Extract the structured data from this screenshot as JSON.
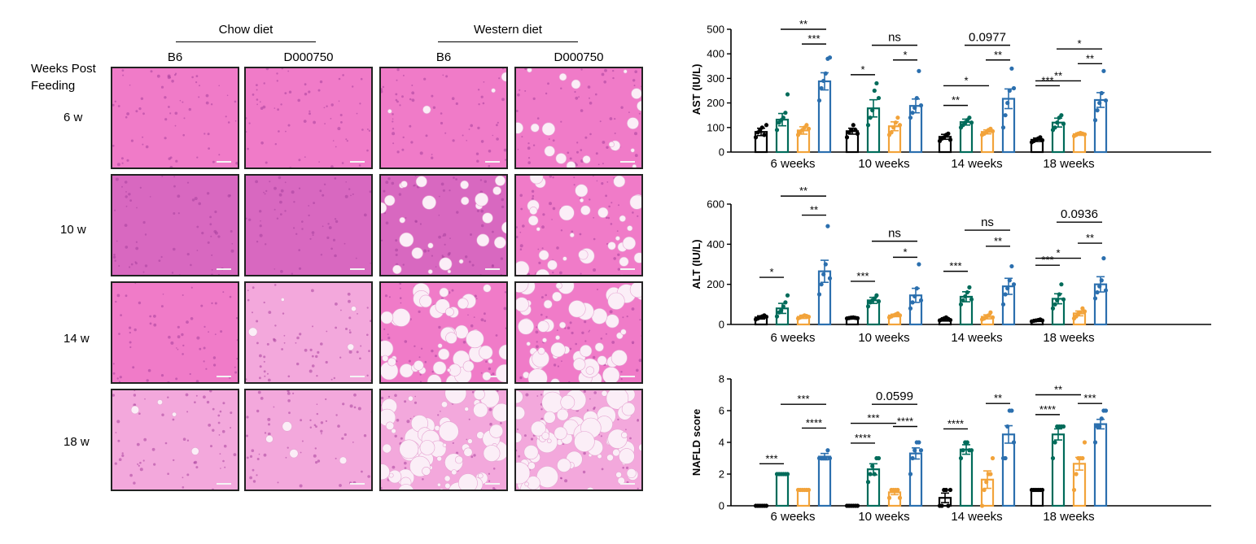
{
  "histology": {
    "diet_headers": [
      "Chow diet",
      "Western diet"
    ],
    "group_headers": [
      "B6",
      "D000750",
      "B6",
      "D000750"
    ],
    "row_header": "Weeks Post Feeding",
    "row_header_lines": [
      "Weeks Post",
      "Feeding"
    ],
    "timepoints": [
      "6 w",
      "10 w",
      "14 w",
      "18 w"
    ],
    "tile_colors": {
      "light": "#f07bc8",
      "deep": "#d868c0",
      "pale": "#f3a8dc"
    },
    "steatosis_level": [
      [
        0,
        0,
        0.05,
        0.25
      ],
      [
        0,
        0,
        0.35,
        0.45
      ],
      [
        0,
        0.05,
        0.65,
        0.75
      ],
      [
        0.05,
        0.05,
        0.9,
        0.95
      ]
    ]
  },
  "colors": {
    "black": "#000000",
    "green": "#006b5a",
    "orange": "#f2a33a",
    "blue": "#2b6fae"
  },
  "chart_data": [
    {
      "type": "bar",
      "ylabel": "AST (IU/L)",
      "ylim": [
        0,
        500
      ],
      "yticks": [
        "0",
        "100",
        "200",
        "300",
        "400",
        "500"
      ],
      "categories": [
        "6 weeks",
        "10 weeks",
        "14 weeks",
        "18 weeks"
      ],
      "series_colors": [
        "#000000",
        "#006b5a",
        "#f2a33a",
        "#2b6fae"
      ],
      "means": [
        [
          82,
          132,
          88,
          288
        ],
        [
          85,
          178,
          105,
          188
        ],
        [
          62,
          122,
          82,
          217
        ],
        [
          50,
          120,
          73,
          212
        ]
      ],
      "sems": [
        [
          15,
          25,
          15,
          35
        ],
        [
          12,
          35,
          18,
          28
        ],
        [
          10,
          12,
          8,
          40
        ],
        [
          7,
          18,
          5,
          30
        ]
      ],
      "points": [
        [
          [
            60,
            80,
            90,
            100,
            70,
            110
          ],
          [
            90,
            120,
            130,
            140,
            160,
            235
          ],
          [
            70,
            80,
            90,
            100,
            110,
            95
          ],
          [
            210,
            260,
            290,
            320,
            380,
            385
          ]
        ],
        [
          [
            60,
            80,
            90,
            110,
            90,
            75
          ],
          [
            110,
            140,
            170,
            250,
            280,
            220
          ],
          [
            70,
            80,
            100,
            120,
            140,
            110
          ],
          [
            140,
            160,
            180,
            220,
            330,
            190
          ]
        ],
        [
          [
            45,
            55,
            60,
            70,
            75,
            50
          ],
          [
            100,
            110,
            120,
            130,
            140,
            120
          ],
          [
            70,
            75,
            80,
            90,
            95,
            85
          ],
          [
            100,
            150,
            200,
            250,
            340,
            260
          ]
        ],
        [
          [
            40,
            45,
            50,
            55,
            60,
            48
          ],
          [
            90,
            100,
            120,
            140,
            150,
            115
          ],
          [
            65,
            70,
            75,
            78,
            75,
            72
          ],
          [
            130,
            170,
            200,
            240,
            330,
            210
          ]
        ]
      ],
      "annotations": [
        {
          "g": 0,
          "from": 1,
          "to": 3,
          "y": 500,
          "text": "**"
        },
        {
          "g": 0,
          "from": 2,
          "to": 3,
          "y": 440,
          "text": "***"
        },
        {
          "g": 1,
          "from": 0,
          "to": 1,
          "y": 315,
          "text": "*"
        },
        {
          "g": 1,
          "from": 1,
          "to": 3,
          "y": 435,
          "text": "ns"
        },
        {
          "g": 1,
          "from": 2,
          "to": 3,
          "y": 375,
          "text": "*"
        },
        {
          "g": 2,
          "from": 0,
          "to": 2,
          "y": 270,
          "text": "*"
        },
        {
          "g": 2,
          "from": 0,
          "to": 1,
          "y": 190,
          "text": "**"
        },
        {
          "g": 2,
          "from": 1,
          "to": 3,
          "y": 435,
          "text": "0.0977"
        },
        {
          "g": 2,
          "from": 2,
          "to": 3,
          "y": 375,
          "text": "**"
        },
        {
          "g": 3,
          "from": 0,
          "to": 1,
          "y": 270,
          "text": "***"
        },
        {
          "g": 3,
          "from": 0,
          "to": 2,
          "y": 290,
          "text": "**"
        },
        {
          "g": 3,
          "from": 1,
          "to": 3,
          "y": 420,
          "text": "*"
        },
        {
          "g": 3,
          "from": 2,
          "to": 3,
          "y": 360,
          "text": "**"
        }
      ]
    },
    {
      "type": "bar",
      "ylabel": "ALT (IU/L)",
      "ylim": [
        0,
        600
      ],
      "yticks": [
        "0",
        "200",
        "400",
        "600"
      ],
      "categories": [
        "6 weeks",
        "10 weeks",
        "14 weeks",
        "18 weeks"
      ],
      "series_colors": [
        "#000000",
        "#006b5a",
        "#f2a33a",
        "#2b6fae"
      ],
      "means": [
        [
          35,
          80,
          38,
          265
        ],
        [
          32,
          120,
          45,
          145
        ],
        [
          25,
          138,
          38,
          190
        ],
        [
          20,
          128,
          55,
          200
        ]
      ],
      "sems": [
        [
          8,
          25,
          8,
          55
        ],
        [
          5,
          15,
          6,
          35
        ],
        [
          8,
          25,
          10,
          40
        ],
        [
          5,
          25,
          12,
          38
        ]
      ],
      "points": [
        [
          [
            25,
            30,
            35,
            40,
            45,
            38
          ],
          [
            40,
            60,
            70,
            90,
            110,
            145
          ],
          [
            30,
            35,
            40,
            45,
            42,
            38
          ],
          [
            150,
            200,
            250,
            300,
            490,
            230
          ]
        ],
        [
          [
            30,
            32,
            34,
            35,
            33,
            31
          ],
          [
            90,
            110,
            120,
            130,
            145,
            115
          ],
          [
            35,
            40,
            45,
            50,
            55,
            45
          ],
          [
            80,
            110,
            140,
            180,
            300,
            120
          ]
        ],
        [
          [
            20,
            25,
            30,
            35,
            28,
            22
          ],
          [
            100,
            120,
            140,
            160,
            185,
            125
          ],
          [
            25,
            30,
            40,
            45,
            60,
            35
          ],
          [
            100,
            150,
            180,
            220,
            290,
            200
          ]
        ],
        [
          [
            15,
            18,
            20,
            22,
            25,
            20
          ],
          [
            80,
            100,
            120,
            150,
            200,
            125
          ],
          [
            30,
            40,
            55,
            60,
            80,
            65
          ],
          [
            130,
            160,
            190,
            220,
            330,
            170
          ]
        ]
      ],
      "annotations": [
        {
          "g": 0,
          "from": 0,
          "to": 1,
          "y": 235,
          "text": "*"
        },
        {
          "g": 0,
          "from": 1,
          "to": 3,
          "y": 640,
          "text": "**"
        },
        {
          "g": 0,
          "from": 2,
          "to": 3,
          "y": 545,
          "text": "**"
        },
        {
          "g": 1,
          "from": 0,
          "to": 1,
          "y": 215,
          "text": "***"
        },
        {
          "g": 1,
          "from": 1,
          "to": 3,
          "y": 415,
          "text": "ns"
        },
        {
          "g": 1,
          "from": 2,
          "to": 3,
          "y": 335,
          "text": "*"
        },
        {
          "g": 2,
          "from": 0,
          "to": 1,
          "y": 265,
          "text": "***"
        },
        {
          "g": 2,
          "from": 1,
          "to": 3,
          "y": 470,
          "text": "ns"
        },
        {
          "g": 2,
          "from": 2,
          "to": 3,
          "y": 390,
          "text": "**"
        },
        {
          "g": 3,
          "from": 0,
          "to": 1,
          "y": 295,
          "text": "***"
        },
        {
          "g": 3,
          "from": 0,
          "to": 2,
          "y": 330,
          "text": "*"
        },
        {
          "g": 3,
          "from": 1,
          "to": 3,
          "y": 510,
          "text": "0.0936"
        },
        {
          "g": 3,
          "from": 2,
          "to": 3,
          "y": 405,
          "text": "**"
        }
      ]
    },
    {
      "type": "bar",
      "ylabel": "NAFLD score",
      "ylim": [
        0,
        8
      ],
      "yticks": [
        "0",
        "2",
        "4",
        "6",
        "8"
      ],
      "categories": [
        "6 weeks",
        "10 weeks",
        "14 weeks",
        "18 weeks"
      ],
      "series_colors": [
        "#000000",
        "#006b5a",
        "#f2a33a",
        "#2b6fae"
      ],
      "means": [
        [
          0,
          2,
          1,
          3.1
        ],
        [
          0,
          2.3,
          0.85,
          3.3
        ],
        [
          0.5,
          3.55,
          1.65,
          4.5
        ],
        [
          1,
          4.5,
          2.65,
          5.15
        ]
      ],
      "sems": [
        [
          0,
          0,
          0,
          0.2
        ],
        [
          0,
          0.35,
          0.15,
          0.35
        ],
        [
          0.3,
          0.3,
          0.55,
          0.55
        ],
        [
          0,
          0.35,
          0.4,
          0.3
        ]
      ],
      "points": [
        [
          [
            0,
            0,
            0,
            0,
            0,
            0
          ],
          [
            2,
            2,
            2,
            2,
            2,
            2
          ],
          [
            1,
            1,
            1,
            1,
            1,
            1
          ],
          [
            3,
            3,
            3,
            3,
            3.5,
            3
          ]
        ],
        [
          [
            0,
            0,
            0,
            0,
            0,
            0
          ],
          [
            1.5,
            2,
            2.5,
            2,
            3,
            3
          ],
          [
            0.5,
            1,
            1,
            1,
            1,
            0.5
          ],
          [
            2,
            3,
            3.5,
            4,
            4,
            3.5
          ]
        ],
        [
          [
            0,
            0,
            1,
            1,
            0,
            1
          ],
          [
            3,
            3.5,
            4,
            4,
            3.5,
            3.5
          ],
          [
            0,
            1,
            1.5,
            2,
            2,
            3
          ],
          [
            3,
            3,
            5,
            6,
            6,
            4
          ]
        ],
        [
          [
            1,
            1,
            1,
            1,
            1,
            1
          ],
          [
            3,
            4,
            5,
            5,
            5,
            5
          ],
          [
            1,
            2,
            3,
            3,
            3,
            4
          ],
          [
            4,
            5,
            5,
            5.5,
            6,
            6
          ]
        ]
      ],
      "annotations": [
        {
          "g": 0,
          "from": 0,
          "to": 1,
          "y": 2.65,
          "text": "***"
        },
        {
          "g": 0,
          "from": 1,
          "to": 3,
          "y": 6.4,
          "text": "***"
        },
        {
          "g": 0,
          "from": 2,
          "to": 3,
          "y": 4.9,
          "text": "****"
        },
        {
          "g": 1,
          "from": 0,
          "to": 1,
          "y": 3.95,
          "text": "****"
        },
        {
          "g": 1,
          "from": 0,
          "to": 2,
          "y": 5.2,
          "text": "***"
        },
        {
          "g": 1,
          "from": 1,
          "to": 3,
          "y": 6.4,
          "text": "0.0599"
        },
        {
          "g": 1,
          "from": 2,
          "to": 3,
          "y": 5.0,
          "text": "****"
        },
        {
          "g": 2,
          "from": 0,
          "to": 1,
          "y": 4.85,
          "text": "****"
        },
        {
          "g": 2,
          "from": 2,
          "to": 3,
          "y": 6.45,
          "text": "**"
        },
        {
          "g": 3,
          "from": 0,
          "to": 1,
          "y": 5.75,
          "text": "****"
        },
        {
          "g": 3,
          "from": 0,
          "to": 2,
          "y": 7.0,
          "text": "**"
        },
        {
          "g": 3,
          "from": 2,
          "to": 3,
          "y": 6.45,
          "text": "***"
        }
      ]
    }
  ]
}
